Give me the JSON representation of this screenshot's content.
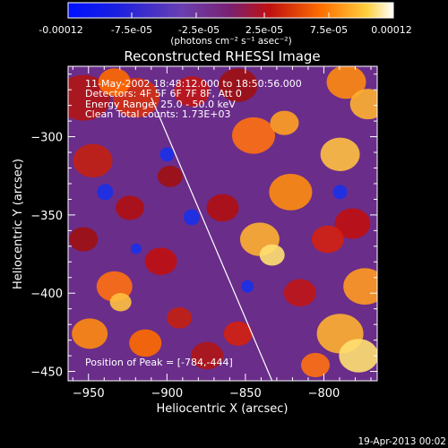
{
  "colorbar": {
    "ticks": [
      "-0.00012",
      "-7.5e-05",
      "-2.5e-05",
      "2.5e-05",
      "7.5e-05",
      "0.00012"
    ],
    "units": "(photons cm⁻² s⁻¹ asec⁻²)"
  },
  "footer": {
    "timestamp": "19-Apr-2013 00:02"
  },
  "chart_data": {
    "type": "heatmap",
    "title": "Reconstructed RHESSI Image",
    "xlabel": "Heliocentric X (arcsec)",
    "ylabel": "Heliocentric Y (arcsec)",
    "xlim": [
      -963,
      -766
    ],
    "ylim": [
      -456,
      -255
    ],
    "xticks": [
      -950,
      -900,
      -850,
      -800
    ],
    "yticks": [
      -300,
      -350,
      -400,
      -450
    ],
    "colorscale_range": [
      -0.00012,
      0.00012
    ],
    "limb_line": [
      [
        -910,
        -275
      ],
      [
        -833,
        -456
      ]
    ],
    "annotations": {
      "line1": "11-May-2002 18:48:12.000 to 18:50:56.000",
      "line2": "Detectors: 4F 5F 6F 7F 8F, Att 0",
      "line3": "Energy Range: 25.0 - 50.0 keV",
      "line4": "Clean    Total counts: 1.73E+03",
      "peak": "Position of Peak = [-784,-444]"
    },
    "peak_position": [
      -784,
      -444
    ],
    "colors": {
      "background": "#000000",
      "axes": "#ffffff",
      "limb": "#ffffff",
      "cmap_low": "#0000ff",
      "cmap_mid": "#7030a0",
      "cmap_high": "#ffffff"
    }
  }
}
